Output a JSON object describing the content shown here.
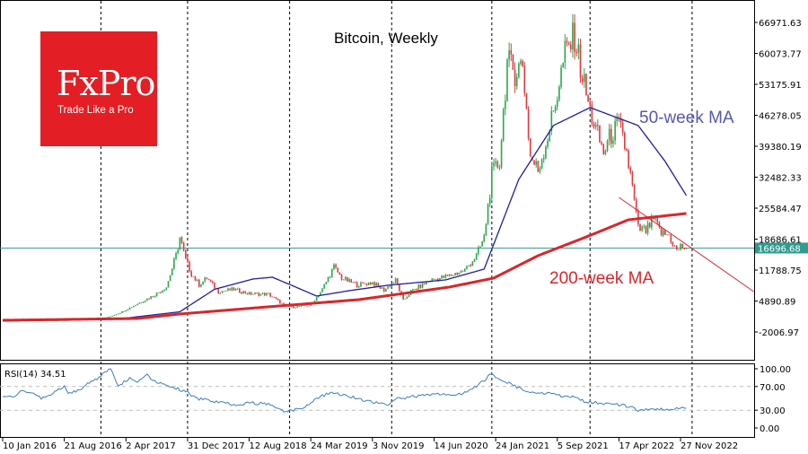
{
  "chart_data": {
    "type": "candlestick",
    "title": "Bitcoin, Weekly",
    "yticks": [
      "66971.63",
      "60073.77",
      "53175.91",
      "46278.05",
      "39380.19",
      "32482.33",
      "25584.47",
      "18686.61",
      "11788.75",
      "4890.89",
      "-2006.97"
    ],
    "ylim": [
      -2006.97,
      66971.63
    ],
    "current_price": "16696.68",
    "xticks": [
      "10 Jan 2016",
      "21 Aug 2016",
      "2 Apr 2017",
      "31 Dec 2017",
      "12 Aug 2018",
      "24 Mar 2019",
      "3 Nov 2019",
      "14 Jun 2020",
      "24 Jan 2021",
      "5 Sep 2021",
      "17 Apr 2022",
      "27 Nov 2022"
    ],
    "xtick_weeks": [
      0,
      32,
      64,
      96,
      128,
      160,
      192,
      224,
      256,
      288,
      320,
      352
    ],
    "vlines_weeks": [
      51,
      96,
      149,
      202,
      254,
      305,
      358
    ],
    "price_keypoints_week_close": [
      [
        0,
        430
      ],
      [
        20,
        600
      ],
      [
        32,
        580
      ],
      [
        45,
        900
      ],
      [
        55,
        1300
      ],
      [
        62,
        2500
      ],
      [
        70,
        4300
      ],
      [
        78,
        6000
      ],
      [
        85,
        8000
      ],
      [
        90,
        15000
      ],
      [
        92,
        19000
      ],
      [
        95,
        14000
      ],
      [
        98,
        11000
      ],
      [
        102,
        8500
      ],
      [
        106,
        10000
      ],
      [
        112,
        7000
      ],
      [
        120,
        7500
      ],
      [
        128,
        6500
      ],
      [
        138,
        6400
      ],
      [
        146,
        4000
      ],
      [
        150,
        3500
      ],
      [
        160,
        4000
      ],
      [
        166,
        7500
      ],
      [
        172,
        12500
      ],
      [
        176,
        10000
      ],
      [
        184,
        8500
      ],
      [
        192,
        9000
      ],
      [
        198,
        7300
      ],
      [
        204,
        9500
      ],
      [
        208,
        5000
      ],
      [
        212,
        7000
      ],
      [
        222,
        9500
      ],
      [
        232,
        10500
      ],
      [
        240,
        11800
      ],
      [
        246,
        15000
      ],
      [
        250,
        19000
      ],
      [
        254,
        33000
      ],
      [
        258,
        36000
      ],
      [
        262,
        58000
      ],
      [
        266,
        56000
      ],
      [
        270,
        58000
      ],
      [
        274,
        37000
      ],
      [
        278,
        34000
      ],
      [
        282,
        40000
      ],
      [
        286,
        47000
      ],
      [
        292,
        60000
      ],
      [
        297,
        64000
      ],
      [
        300,
        57000
      ],
      [
        304,
        49000
      ],
      [
        308,
        43000
      ],
      [
        312,
        38000
      ],
      [
        316,
        42000
      ],
      [
        320,
        44000
      ],
      [
        324,
        38000
      ],
      [
        327,
        30000
      ],
      [
        330,
        21000
      ],
      [
        334,
        20500
      ],
      [
        338,
        23000
      ],
      [
        342,
        20000
      ],
      [
        346,
        19500
      ],
      [
        350,
        16000
      ],
      [
        352,
        17000
      ],
      [
        355,
        16696.68
      ]
    ],
    "series": [
      {
        "name": "50-week MA",
        "color": "#1f1f9e",
        "label": "50-week MA",
        "keypoints": [
          [
            0,
            450
          ],
          [
            60,
            900
          ],
          [
            92,
            2500
          ],
          [
            110,
            7500
          ],
          [
            130,
            9800
          ],
          [
            140,
            10200
          ],
          [
            150,
            8400
          ],
          [
            163,
            6000
          ],
          [
            180,
            7200
          ],
          [
            200,
            8400
          ],
          [
            230,
            9600
          ],
          [
            250,
            12000
          ],
          [
            268,
            32000
          ],
          [
            286,
            44000
          ],
          [
            305,
            48000
          ],
          [
            330,
            44000
          ],
          [
            344,
            36000
          ],
          [
            355,
            28400
          ]
        ]
      },
      {
        "name": "200-week MA",
        "color": "#d9262c",
        "label": "200-week MA",
        "keypoints": [
          [
            0,
            600
          ],
          [
            70,
            1000
          ],
          [
            92,
            2000
          ],
          [
            138,
            3600
          ],
          [
            185,
            5200
          ],
          [
            232,
            8000
          ],
          [
            255,
            10000
          ],
          [
            278,
            15000
          ],
          [
            302,
            19000
          ],
          [
            325,
            23000
          ],
          [
            355,
            24400
          ]
        ]
      },
      {
        "name": "trendline",
        "color": "#d9262c",
        "keypoints": [
          [
            320,
            27980
          ],
          [
            390,
            6990
          ]
        ]
      }
    ],
    "rsi": {
      "label": "RSI(14) 34.51",
      "yticks": [
        "100.00",
        "70.00",
        "30.00",
        "0.00"
      ],
      "levels": [
        70,
        30
      ],
      "keypoints": [
        [
          0,
          55
        ],
        [
          6,
          55
        ],
        [
          10,
          62
        ],
        [
          14,
          60
        ],
        [
          20,
          50
        ],
        [
          26,
          58
        ],
        [
          32,
          70
        ],
        [
          34,
          58
        ],
        [
          40,
          64
        ],
        [
          44,
          75
        ],
        [
          50,
          85
        ],
        [
          56,
          100
        ],
        [
          60,
          72
        ],
        [
          66,
          84
        ],
        [
          70,
          78
        ],
        [
          75,
          92
        ],
        [
          78,
          80
        ],
        [
          88,
          70
        ],
        [
          96,
          60
        ],
        [
          100,
          50
        ],
        [
          110,
          45
        ],
        [
          120,
          40
        ],
        [
          130,
          42
        ],
        [
          140,
          40
        ],
        [
          146,
          28
        ],
        [
          150,
          30
        ],
        [
          156,
          34
        ],
        [
          162,
          48
        ],
        [
          170,
          60
        ],
        [
          176,
          57
        ],
        [
          184,
          50
        ],
        [
          192,
          44
        ],
        [
          200,
          40
        ],
        [
          204,
          48
        ],
        [
          210,
          52
        ],
        [
          220,
          55
        ],
        [
          228,
          58
        ],
        [
          236,
          55
        ],
        [
          246,
          70
        ],
        [
          250,
          80
        ],
        [
          254,
          92
        ],
        [
          258,
          82
        ],
        [
          264,
          75
        ],
        [
          272,
          60
        ],
        [
          280,
          60
        ],
        [
          288,
          55
        ],
        [
          296,
          52
        ],
        [
          302,
          45
        ],
        [
          310,
          42
        ],
        [
          318,
          40
        ],
        [
          326,
          36
        ],
        [
          330,
          30
        ],
        [
          338,
          33
        ],
        [
          346,
          32
        ],
        [
          355,
          34.51
        ]
      ]
    }
  },
  "logo": {
    "brand": "FxPro",
    "tagline": "Trade Like a Pro"
  }
}
